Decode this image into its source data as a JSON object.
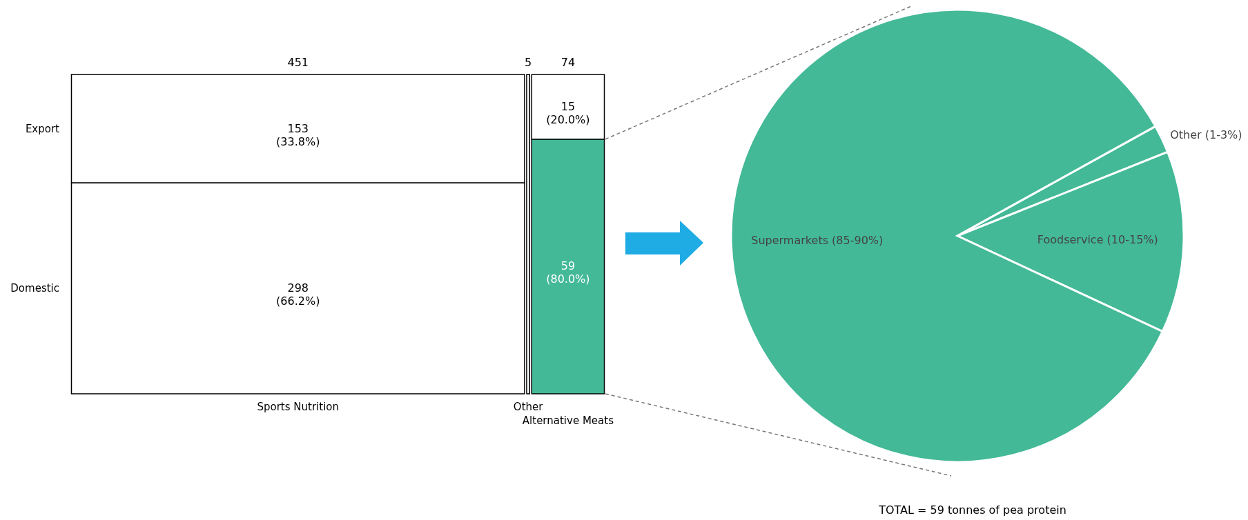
{
  "chart_data": [
    {
      "type": "other",
      "categories": [
        "Sports Nutrition",
        "Other",
        "Alternative Meats"
      ],
      "values": [
        451,
        5,
        74
      ],
      "data_labels": true,
      "series": [
        {
          "name": "Domestic",
          "values": [
            298,
            null,
            59
          ],
          "colors": [
            "#ffffff",
            null,
            "#43b997"
          ],
          "value_labels": [
            "298\n(66.2%)",
            null,
            "59\n(80.0%)"
          ]
        },
        {
          "name": "Export",
          "values": [
            153,
            null,
            15
          ],
          "colors": [
            "#ffffff",
            null,
            "#ffffff"
          ],
          "value_labels": [
            "153\n(33.8%)",
            null,
            "15\n(20.0%)"
          ]
        }
      ]
    },
    {
      "type": "pie",
      "categories": [
        "Other (1-3%)",
        "Foodservice (10-15%)",
        "Supermarkets (85-90%)"
      ],
      "values": [
        2,
        13,
        85
      ],
      "colors": [
        "#43b997",
        "#43b997",
        "#43b997"
      ],
      "annotations": [
        "TOTAL = 59 tonnes of pea protein"
      ]
    }
  ]
}
